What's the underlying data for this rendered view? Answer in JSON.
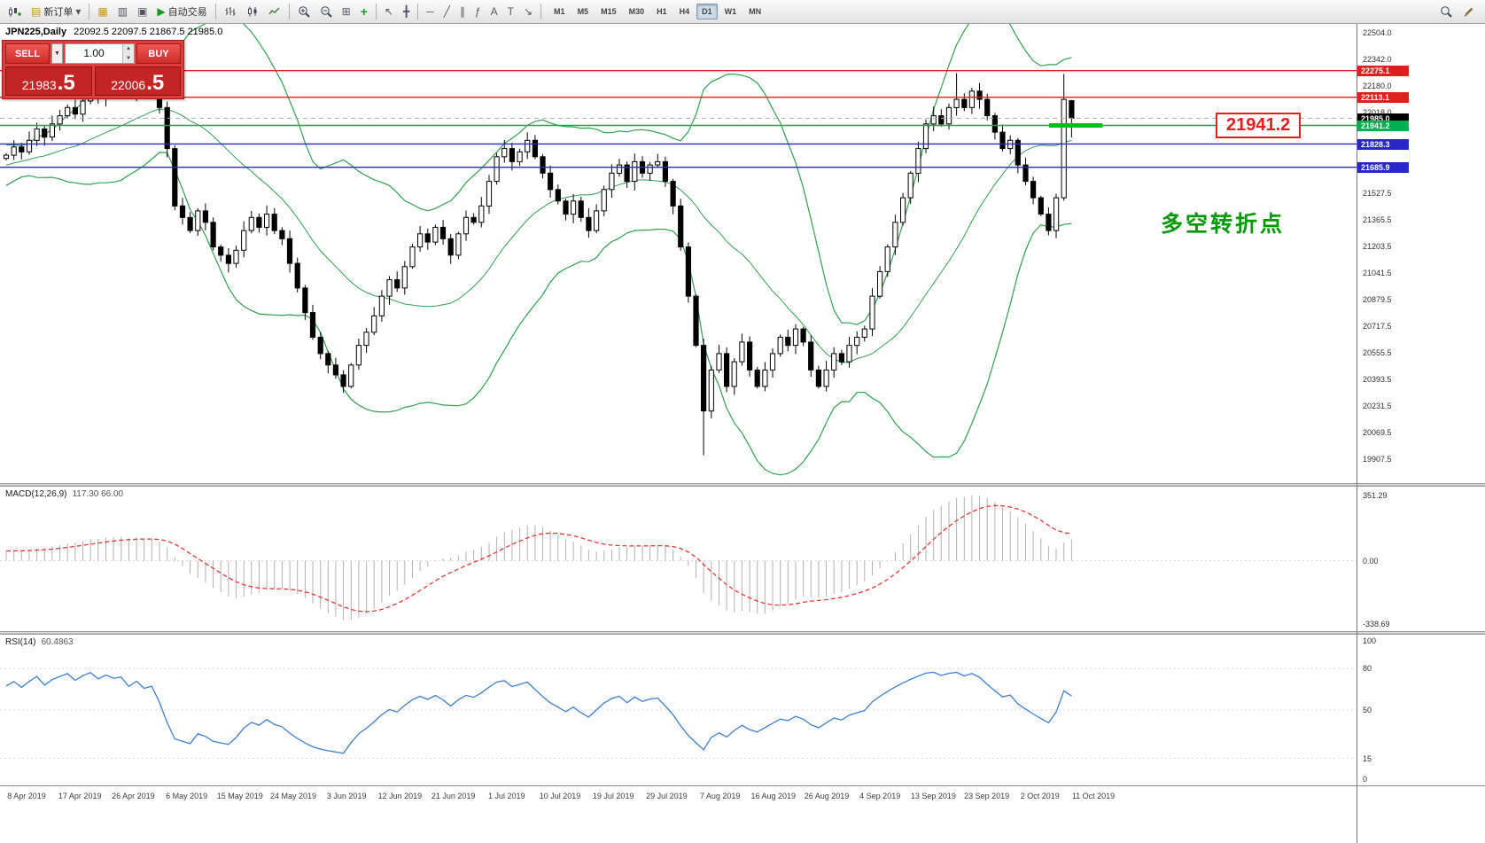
{
  "toolbar": {
    "new_order_label": "新订单",
    "auto_trading_label": "自动交易",
    "timeframes": [
      "M1",
      "M5",
      "M15",
      "M30",
      "H1",
      "H4",
      "D1",
      "W1",
      "MN"
    ],
    "active_timeframe": "D1"
  },
  "header": {
    "symbol_title": "JPN225,Daily",
    "ohlc": "22092.5 22097.5 21867.5 21985.0"
  },
  "trade_panel": {
    "sell_label": "SELL",
    "buy_label": "BUY",
    "lot": "1.00",
    "sell_price": "21983.5",
    "buy_price": "22006.5"
  },
  "annotations": {
    "turning_point": "多空转折点",
    "price_callout": "21941.2",
    "callout_color": "#e01f1f",
    "turning_point_color": "#009a00"
  },
  "indicators": {
    "macd_label": "MACD(12,26,9)",
    "macd_values": "117.30 66.00",
    "rsi_label": "RSI(14)",
    "rsi_value": "60.4863"
  },
  "axis": {
    "price_ticks": [
      22504.0,
      22342.0,
      22180.0,
      22018.0,
      21527.5,
      21365.5,
      21203.5,
      21041.5,
      20879.5,
      20717.5,
      20555.5,
      20393.5,
      20231.5,
      20069.5,
      19907.5
    ],
    "price_tags": [
      {
        "text": "22275.1",
        "value": 22275.1,
        "bg": "#e01f1f"
      },
      {
        "text": "22113.1",
        "value": 22113.1,
        "bg": "#e01f1f"
      },
      {
        "text": "21985.0",
        "value": 21985.0,
        "bg": "#000000"
      },
      {
        "text": "21941.2",
        "value": 21941.2,
        "bg": "#00b050"
      },
      {
        "text": "21828.3",
        "value": 21828.3,
        "bg": "#2828c8"
      },
      {
        "text": "21685.9",
        "value": 21685.9,
        "bg": "#2828c8"
      }
    ],
    "macd_ticks": [
      {
        "text": "351.29",
        "value": 351.29
      },
      {
        "text": "0.00",
        "value": 0
      },
      {
        "text": "-338.69",
        "value": -338.69
      }
    ],
    "rsi_ticks": [
      100,
      80,
      50,
      15,
      0
    ],
    "dates": [
      "8 Apr 2019",
      "17 Apr 2019",
      "26 Apr 2019",
      "6 May 2019",
      "15 May 2019",
      "24 May 2019",
      "3 Jun 2019",
      "12 Jun 2019",
      "21 Jun 2019",
      "1 Jul 2019",
      "10 Jul 2019",
      "19 Jul 2019",
      "29 Jul 2019",
      "7 Aug 2019",
      "16 Aug 2019",
      "26 Aug 2019",
      "4 Sep 2019",
      "13 Sep 2019",
      "23 Sep 2019",
      "2 Oct 2019",
      "11 Oct 2019"
    ]
  },
  "chart_data": [
    {
      "type": "candlestick",
      "symbol": "JPN225",
      "timeframe": "Daily",
      "title_ohlc": {
        "open": 22092.5,
        "high": 22097.5,
        "low": 21867.5,
        "close": 21985.0
      },
      "y_range": [
        19760,
        22560
      ],
      "first_open": 21740,
      "pre_closes": [
        21500,
        21540,
        21580,
        21620,
        21660,
        21700,
        21640,
        21690,
        21730,
        21770,
        21720,
        21680,
        21700,
        21740,
        21780,
        21750,
        21700,
        21720,
        21750,
        21740
      ],
      "closes": [
        21760,
        21810,
        21780,
        21850,
        21920,
        21870,
        21950,
        22000,
        22050,
        22010,
        22090,
        22150,
        22110,
        22180,
        22160,
        22180,
        22120,
        22200,
        22150,
        22180,
        22050,
        21800,
        21450,
        21380,
        21300,
        21420,
        21350,
        21200,
        21150,
        21100,
        21180,
        21300,
        21380,
        21320,
        21400,
        21300,
        21250,
        21100,
        20950,
        20800,
        20650,
        20550,
        20480,
        20420,
        20350,
        20480,
        20600,
        20680,
        20780,
        20900,
        21000,
        20950,
        21080,
        21200,
        21280,
        21230,
        21320,
        21250,
        21150,
        21280,
        21380,
        21350,
        21450,
        21600,
        21750,
        21800,
        21720,
        21780,
        21850,
        21750,
        21650,
        21550,
        21480,
        21400,
        21480,
        21380,
        21300,
        21420,
        21550,
        21650,
        21700,
        21600,
        21720,
        21650,
        21700,
        21720,
        21600,
        21450,
        21200,
        20900,
        20600,
        20200,
        20450,
        20550,
        20350,
        20500,
        20620,
        20450,
        20350,
        20450,
        20550,
        20650,
        20600,
        20700,
        20620,
        20450,
        20350,
        20450,
        20550,
        20500,
        20600,
        20650,
        20700,
        20900,
        21050,
        21200,
        21350,
        21500,
        21650,
        21800,
        21950,
        22000,
        21950,
        22050,
        22100,
        22050,
        22150,
        22100,
        22000,
        21900,
        21800,
        21850,
        21700,
        21600,
        21500,
        21400,
        21300,
        21500,
        22100,
        21985
      ],
      "overrides": {
        "91": {
          "low": 19930
        },
        "124": {
          "high": 22260
        },
        "138": {
          "high": 22255
        },
        "139": {
          "open": 22092.5,
          "high": 22097.5,
          "low": 21867.5,
          "close": 21985.0
        }
      },
      "indicators": [
        "Bollinger Bands (20,2)"
      ],
      "band_color": "#2fa053",
      "hlines": [
        {
          "value": 22275.1,
          "color": "#e01f1f",
          "style": "solid"
        },
        {
          "value": 22113.1,
          "color": "#e01f1f",
          "style": "solid"
        },
        {
          "value": 21985.0,
          "color": "#ababab",
          "style": "dashed",
          "note": "current price"
        },
        {
          "value": 21941.2,
          "color": "#00b050",
          "style": "solid"
        },
        {
          "value": 21828.3,
          "color": "#2828c8",
          "style": "solid"
        },
        {
          "value": 21685.9,
          "color": "#2828c8",
          "style": "solid"
        }
      ],
      "highlight_segment": {
        "value": 21941.2,
        "color": "#00c020"
      }
    },
    {
      "type": "macd_histogram",
      "label": "MACD(12,26,9)",
      "params": [
        12,
        26,
        9
      ],
      "current_macd": 117.3,
      "current_signal": 66.0,
      "y_ticks": [
        351.29,
        0.0,
        -338.69
      ],
      "histogram_color": "#b0b0b0",
      "signal_color": "#e23a3a"
    },
    {
      "type": "rsi_line",
      "label": "RSI(14)",
      "period": 14,
      "current": 60.4863,
      "levels": [
        80,
        50,
        15
      ],
      "y_ticks": [
        100,
        80,
        50,
        15,
        0
      ],
      "line_color": "#3b7fd4"
    }
  ]
}
